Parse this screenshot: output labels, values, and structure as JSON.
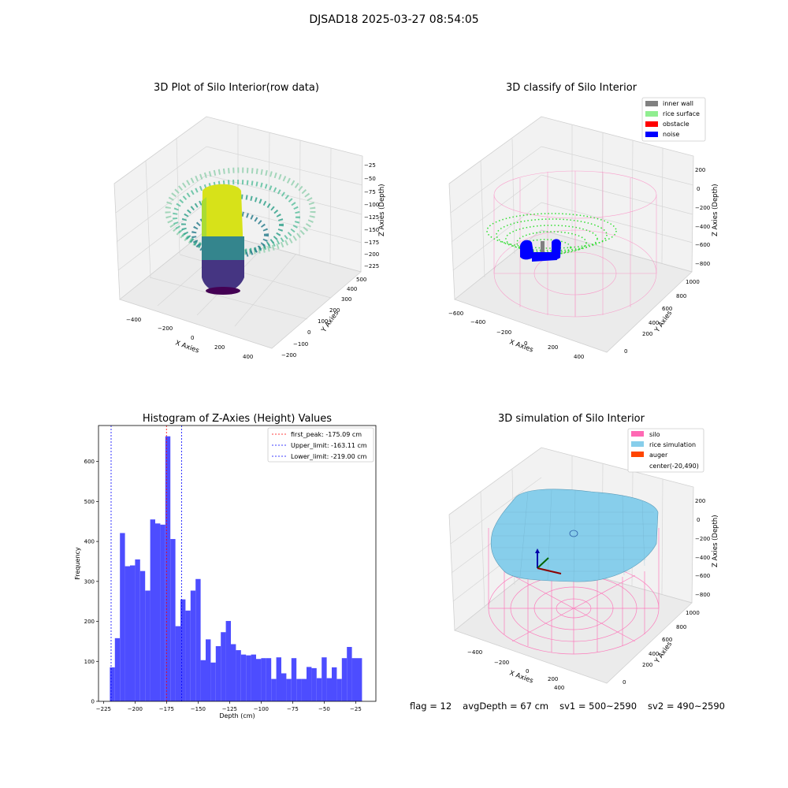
{
  "suptitle": "DJSAD18 2025-03-27 08:54:05",
  "footer": {
    "flag": "flag = 12",
    "avg_depth": "avgDepth = 67 cm",
    "sv1": "sv1 = 500~2590",
    "sv2": "sv2 = 490~2590"
  },
  "colors": {
    "inner_wall": "#808080",
    "rice_surface": "#90ee90",
    "obstacle": "#ff0000",
    "noise": "#0000ff",
    "silo": "#ff69b4",
    "rice_simulation": "#87ceeb",
    "auger": "#ff4500",
    "histogram_bar": "#4d4dff"
  },
  "plot1": {
    "title": "3D Plot of Silo Interior(row data)",
    "xlabel": "X Axies",
    "ylabel": "Y Axies",
    "zlabel": "Z Axies (Depth)",
    "xticks": [
      "−400",
      "−200",
      "0",
      "200",
      "400"
    ],
    "yticks": [
      "−200",
      "−100",
      "0",
      "100",
      "200",
      "300",
      "400",
      "500"
    ],
    "zticks": [
      "−25",
      "−50",
      "−75",
      "−100",
      "−125",
      "−150",
      "−175",
      "−200",
      "−225"
    ],
    "colormap": "viridis"
  },
  "plot2": {
    "title": "3D classify of Silo Interior",
    "xlabel": "X Axies",
    "ylabel": "Y Axies",
    "zlabel": "Z Axies (Depth)",
    "xticks": [
      "−600",
      "−400",
      "−200",
      "0",
      "200",
      "400"
    ],
    "yticks": [
      "0",
      "200",
      "400",
      "600",
      "800",
      "1000"
    ],
    "zticks": [
      "200",
      "0",
      "−200",
      "−400",
      "−600",
      "−800"
    ],
    "legend": [
      "inner wall",
      "rice surface",
      "obstacle",
      "noise"
    ]
  },
  "plot3": {
    "title": "Histogram of Z-Axies (Height) Values",
    "xlabel": "Depth (cm)",
    "ylabel": "Frequency",
    "legend": [
      "first_peak: -175.09 cm",
      "Upper_limit: -163.11 cm",
      "Lower_limit: -219.00 cm"
    ]
  },
  "plot4": {
    "title": "3D simulation of Silo Interior",
    "xlabel": "X Axies",
    "ylabel": "Y Axies",
    "zlabel": "Z Axies (Depth)",
    "xticks": [
      "−400",
      "−200",
      "0",
      "200",
      "400"
    ],
    "yticks": [
      "0",
      "200",
      "400",
      "600",
      "800",
      "1000"
    ],
    "zticks": [
      "200",
      "0",
      "−200",
      "−400",
      "−600",
      "−800"
    ],
    "legend": [
      "silo",
      "rice simulation",
      "auger",
      "center(-20,490)"
    ]
  },
  "chart_data": [
    {
      "type": "scatter",
      "subtype": "3d",
      "title": "3D Plot of Silo Interior(row data)",
      "xlabel": "X Axies",
      "ylabel": "Y Axies",
      "zlabel": "Z Axies (Depth)",
      "xlim": [
        -500,
        500
      ],
      "ylim": [
        -250,
        550
      ],
      "zlim": [
        -235,
        -15
      ],
      "colormap": "viridis"
    },
    {
      "type": "scatter",
      "subtype": "3d",
      "title": "3D classify of Silo Interior",
      "xlabel": "X Axies",
      "ylabel": "Y Axies",
      "zlabel": "Z Axies (Depth)",
      "xlim": [
        -650,
        500
      ],
      "ylim": [
        -100,
        1050
      ],
      "zlim": [
        -880,
        300
      ],
      "series": [
        {
          "name": "inner wall"
        },
        {
          "name": "rice surface"
        },
        {
          "name": "obstacle"
        },
        {
          "name": "noise"
        }
      ]
    },
    {
      "type": "bar",
      "subtype": "histogram",
      "title": "Histogram of Z-Axies (Height) Values",
      "xlabel": "Depth (cm)",
      "ylabel": "Frequency",
      "xlim": [
        -229,
        -9
      ],
      "ylim": [
        0,
        690
      ],
      "xticks": [
        -225,
        -200,
        -175,
        -150,
        -125,
        -100,
        -75,
        -50,
        -25
      ],
      "yticks": [
        0,
        100,
        200,
        300,
        400,
        500,
        600
      ],
      "bin_width": 4,
      "bin_start": -220,
      "values": [
        85,
        158,
        421,
        338,
        340,
        355,
        326,
        277,
        455,
        445,
        442,
        663,
        406,
        188,
        255,
        227,
        277,
        306,
        103,
        155,
        97,
        138,
        173,
        201,
        143,
        128,
        117,
        115,
        117,
        106,
        108,
        108,
        56,
        110,
        70,
        56,
        108,
        56,
        56,
        86,
        83,
        58,
        110,
        58,
        85,
        56,
        108,
        136,
        108,
        108
      ],
      "vlines": [
        {
          "name": "first_peak: -175.09 cm",
          "x": -175.09,
          "color": "#ff0000"
        },
        {
          "name": "Upper_limit: -163.11 cm",
          "x": -163.11,
          "color": "#0000ff"
        },
        {
          "name": "Lower_limit: -219.00 cm",
          "x": -219.0,
          "color": "#0000ff"
        }
      ],
      "legend_position": "upper right"
    },
    {
      "type": "area",
      "subtype": "3d-surface",
      "title": "3D simulation of Silo Interior",
      "xlabel": "X Axies",
      "ylabel": "Y Axies",
      "zlabel": "Z Axies (Depth)",
      "xlim": [
        -500,
        500
      ],
      "ylim": [
        -100,
        1050
      ],
      "zlim": [
        -880,
        300
      ],
      "center": [
        -20,
        490
      ],
      "series": [
        {
          "name": "silo"
        },
        {
          "name": "rice simulation"
        },
        {
          "name": "auger"
        },
        {
          "name": "center(-20,490)"
        }
      ]
    }
  ]
}
